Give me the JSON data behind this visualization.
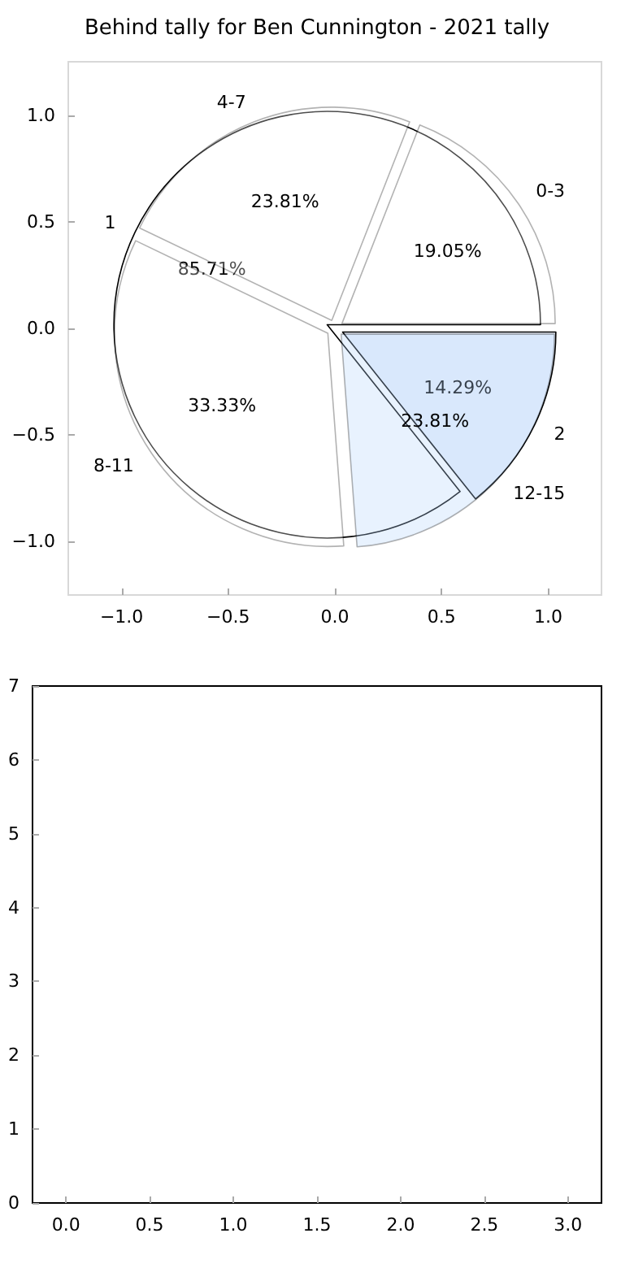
{
  "chart_data": [
    {
      "type": "pie",
      "title": "Behind tally for Ben Cunnington - 2021 tally",
      "categories": [
        "0-3",
        "4-7",
        "8-11",
        "12-15"
      ],
      "values": [
        19.05,
        23.81,
        33.33,
        23.81
      ],
      "colors": [
        "#ffffff",
        "#ffffff",
        "#ffffff",
        "#b3d4fc"
      ],
      "value_labels": [
        "19.05%",
        "23.81%",
        "33.33%",
        "23.81%"
      ]
    },
    {
      "type": "pie",
      "categories": [
        "1",
        "2"
      ],
      "values": [
        85.71,
        14.29
      ],
      "colors": [
        "#ffffff",
        "#eaf1fd"
      ],
      "value_labels": [
        "85.71%",
        "14.29%"
      ]
    },
    {
      "type": "scatter",
      "xlim": [
        -1.25,
        1.25
      ],
      "ylim": [
        -1.25,
        1.25
      ],
      "xticks": [
        {
          "value": -1,
          "label": "−1.0"
        },
        {
          "value": -0.5,
          "label": "−0.5"
        },
        {
          "value": 0,
          "label": "0.0"
        },
        {
          "value": 0.5,
          "label": "0.5"
        },
        {
          "value": 1,
          "label": "1.0"
        }
      ],
      "yticks": [
        {
          "value": -1,
          "label": "−1.0"
        },
        {
          "value": -0.5,
          "label": "−0.5"
        },
        {
          "value": 0,
          "label": "0.0"
        },
        {
          "value": 0.5,
          "label": "0.5"
        },
        {
          "value": 1,
          "label": "1.0"
        }
      ]
    },
    {
      "type": "scatter",
      "xlim": [
        -0.2,
        3.2
      ],
      "ylim": [
        0,
        7
      ],
      "xticks": [
        {
          "value": 0,
          "label": "0.0"
        },
        {
          "value": 0.5,
          "label": "0.5"
        },
        {
          "value": 1,
          "label": "1.0"
        },
        {
          "value": 1.5,
          "label": "1.5"
        },
        {
          "value": 2,
          "label": "2.0"
        },
        {
          "value": 2.5,
          "label": "2.5"
        },
        {
          "value": 3,
          "label": "3.0"
        }
      ],
      "yticks": [
        0,
        1,
        2,
        3,
        4,
        5,
        6,
        7
      ]
    }
  ]
}
